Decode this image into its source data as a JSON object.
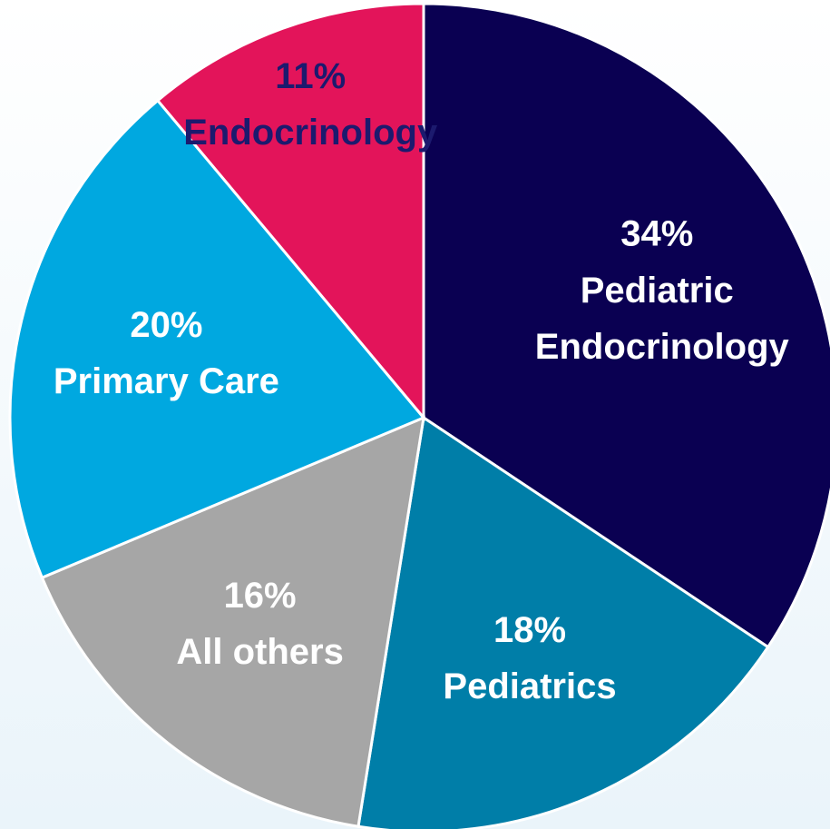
{
  "chart_data": {
    "type": "pie",
    "categories": [
      "Pediatric Endocrinology",
      "Pediatrics",
      "All others",
      "Primary Care",
      "Endocrinology"
    ],
    "values": [
      34,
      18,
      16,
      20,
      11
    ],
    "value_labels": [
      "34%",
      "18%",
      "16%",
      "20%",
      "11%"
    ],
    "colors": [
      "#0a0052",
      "#007ea8",
      "#a6a6a6",
      "#00a8e0",
      "#e3145a"
    ],
    "label_colors": [
      "#ffffff",
      "#ffffff",
      "#ffffff",
      "#ffffff",
      "#1c1a6e"
    ]
  }
}
